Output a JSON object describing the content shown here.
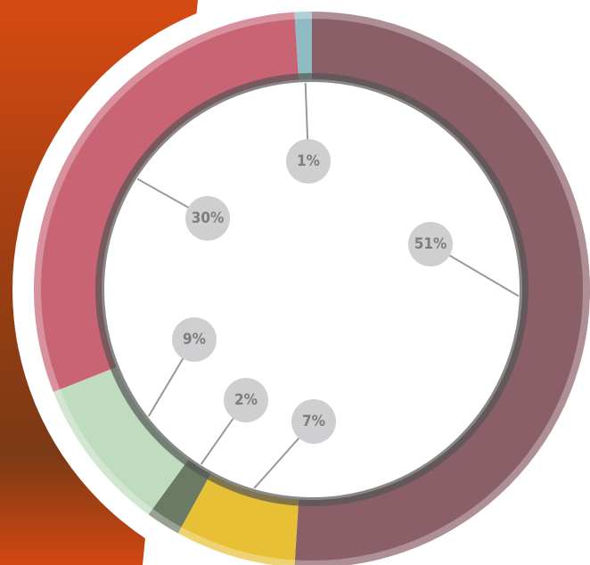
{
  "chart_data": {
    "type": "donut",
    "values": [
      51,
      7,
      2,
      9,
      30,
      1
    ],
    "value_labels": [
      "51%",
      "7%",
      "2%",
      "9%",
      "30%",
      "1%"
    ],
    "colors": [
      "#8a5f68",
      "#e8c036",
      "#6c7a64",
      "#bfdcbf",
      "#c86474",
      "#8fbcc4"
    ]
  }
}
